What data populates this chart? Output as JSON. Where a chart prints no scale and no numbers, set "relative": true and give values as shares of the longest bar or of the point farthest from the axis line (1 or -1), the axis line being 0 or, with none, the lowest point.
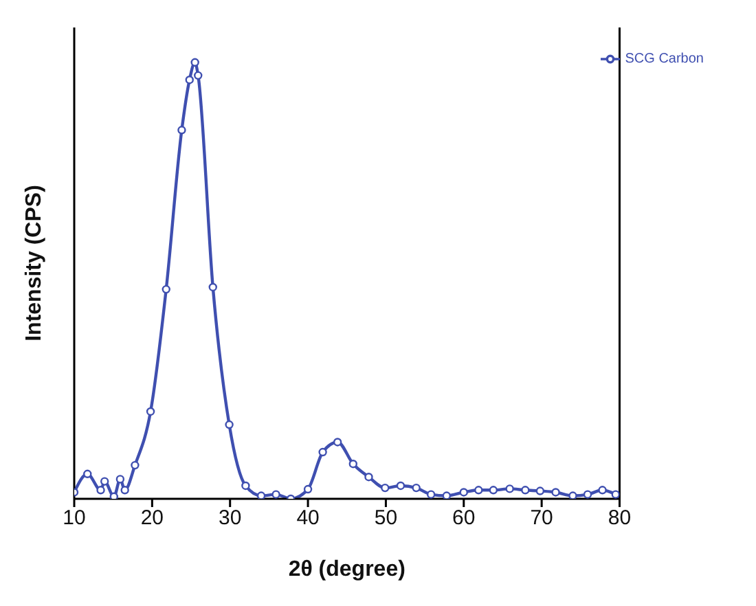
{
  "chart_data": {
    "type": "line",
    "relative": true,
    "xlabel": "2θ (degree)",
    "ylabel": "Intensity (CPS)",
    "xlim": [
      10,
      80
    ],
    "xticks": [
      10,
      20,
      30,
      40,
      50,
      60,
      70,
      80
    ],
    "marker": "circle",
    "line_style": "solid",
    "legend": "top right",
    "grid": false,
    "series": [
      {
        "name": "SCG Carbon",
        "color": "#3f4fb0",
        "x": [
          10,
          11.7,
          13.4,
          13.9,
          15.1,
          15.9,
          16.5,
          17.8,
          19.8,
          21.8,
          23.8,
          24.8,
          25.5,
          25.9,
          27.8,
          29.9,
          32.0,
          34.0,
          35.9,
          37.8,
          40.0,
          41.9,
          43.8,
          45.8,
          47.8,
          49.9,
          51.9,
          53.9,
          55.8,
          57.8,
          60.0,
          61.9,
          63.8,
          65.9,
          67.9,
          69.8,
          71.8,
          74.0,
          75.9,
          77.8,
          79.5
        ],
        "values": [
          0.015,
          0.057,
          0.02,
          0.04,
          0.005,
          0.045,
          0.02,
          0.077,
          0.2,
          0.48,
          0.845,
          0.96,
          1,
          0.97,
          0.485,
          0.17,
          0.03,
          0.007,
          0.01,
          0,
          0.022,
          0.107,
          0.13,
          0.08,
          0.05,
          0.025,
          0.03,
          0.025,
          0.01,
          0.007,
          0.015,
          0.02,
          0.02,
          0.023,
          0.02,
          0.018,
          0.015,
          0.007,
          0.01,
          0.02,
          0.01
        ]
      }
    ]
  }
}
